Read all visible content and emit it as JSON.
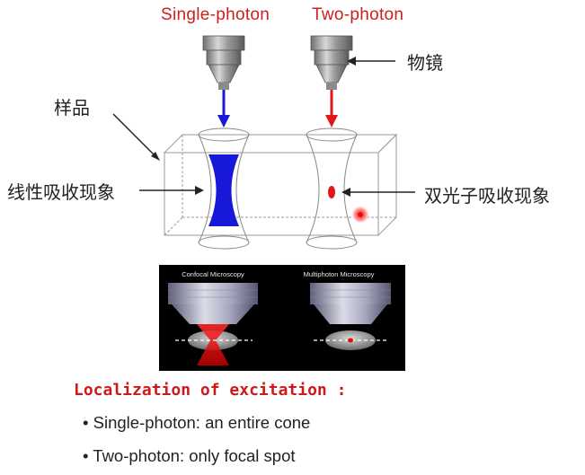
{
  "headers": {
    "single": "Single-photon",
    "two": "Two-photon"
  },
  "labels": {
    "objective": "物镜",
    "sample": "样品",
    "linear": "线性吸收现象",
    "twophoton": "双光子吸收现象"
  },
  "inset": {
    "left_title": "Confocal Microscopy",
    "right_title": "Multiphoton Microscopy"
  },
  "localization": {
    "heading": "Localization of excitation :",
    "items": [
      {
        "mark": "•",
        "text": "Single-photon: an entire cone"
      },
      {
        "mark": "•",
        "text": "Two-photon: only focal spot"
      }
    ]
  },
  "colors": {
    "header_red": "#cc2020",
    "blue_beam": "#1818d8",
    "red_beam": "#e01818"
  }
}
